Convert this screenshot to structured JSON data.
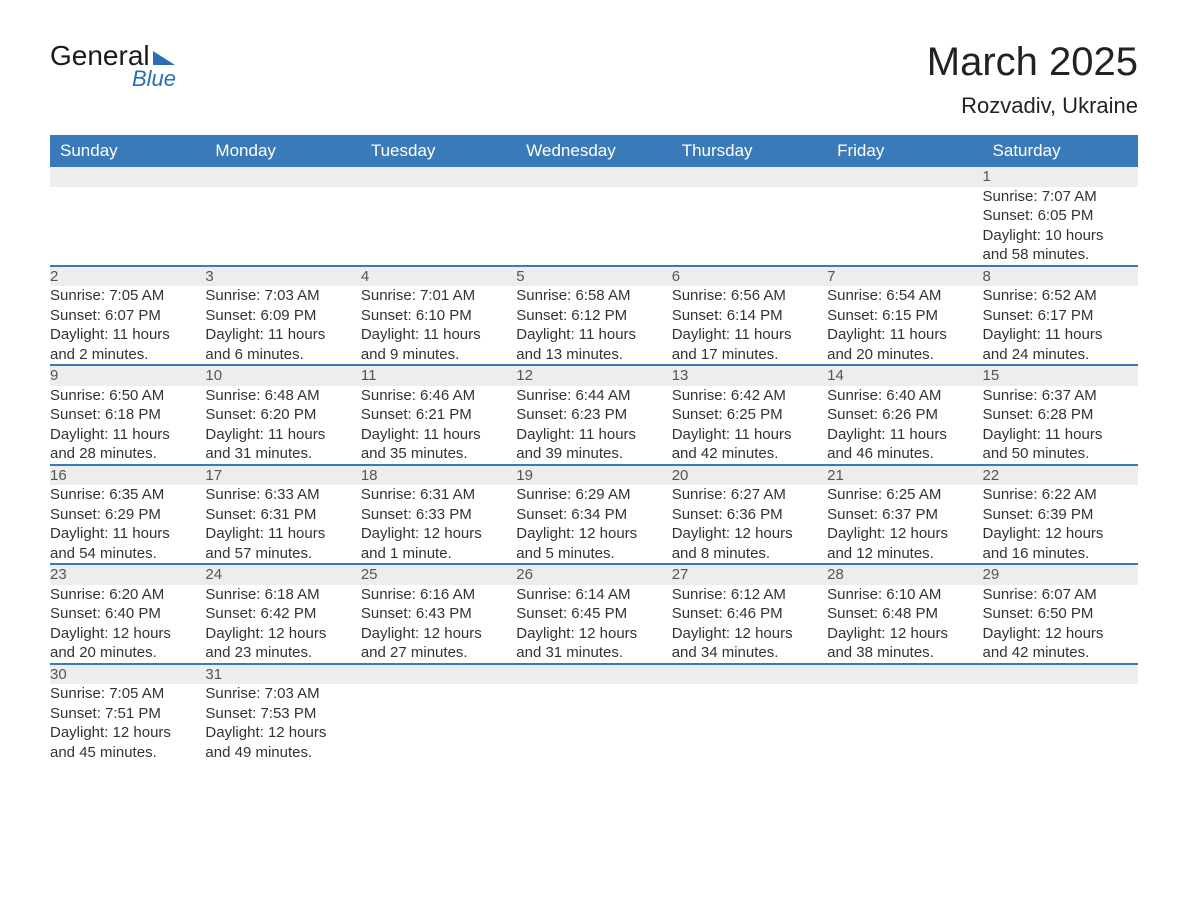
{
  "logo": {
    "word1": "General",
    "word2": "Blue"
  },
  "title": {
    "month": "March 2025",
    "location": "Rozvadiv, Ukraine"
  },
  "colors": {
    "header_bg": "#3b7ab8",
    "header_text": "#ffffff",
    "daynum_bg": "#ededed",
    "row_border": "#3b7ab8",
    "body_text": "#333333",
    "logo_accent": "#2a6db8"
  },
  "columns": [
    "Sunday",
    "Monday",
    "Tuesday",
    "Wednesday",
    "Thursday",
    "Friday",
    "Saturday"
  ],
  "weeks": [
    {
      "days": [
        null,
        null,
        null,
        null,
        null,
        null,
        {
          "n": "1",
          "sunrise": "Sunrise: 7:07 AM",
          "sunset": "Sunset: 6:05 PM",
          "day1": "Daylight: 10 hours",
          "day2": "and 58 minutes."
        }
      ]
    },
    {
      "days": [
        {
          "n": "2",
          "sunrise": "Sunrise: 7:05 AM",
          "sunset": "Sunset: 6:07 PM",
          "day1": "Daylight: 11 hours",
          "day2": "and 2 minutes."
        },
        {
          "n": "3",
          "sunrise": "Sunrise: 7:03 AM",
          "sunset": "Sunset: 6:09 PM",
          "day1": "Daylight: 11 hours",
          "day2": "and 6 minutes."
        },
        {
          "n": "4",
          "sunrise": "Sunrise: 7:01 AM",
          "sunset": "Sunset: 6:10 PM",
          "day1": "Daylight: 11 hours",
          "day2": "and 9 minutes."
        },
        {
          "n": "5",
          "sunrise": "Sunrise: 6:58 AM",
          "sunset": "Sunset: 6:12 PM",
          "day1": "Daylight: 11 hours",
          "day2": "and 13 minutes."
        },
        {
          "n": "6",
          "sunrise": "Sunrise: 6:56 AM",
          "sunset": "Sunset: 6:14 PM",
          "day1": "Daylight: 11 hours",
          "day2": "and 17 minutes."
        },
        {
          "n": "7",
          "sunrise": "Sunrise: 6:54 AM",
          "sunset": "Sunset: 6:15 PM",
          "day1": "Daylight: 11 hours",
          "day2": "and 20 minutes."
        },
        {
          "n": "8",
          "sunrise": "Sunrise: 6:52 AM",
          "sunset": "Sunset: 6:17 PM",
          "day1": "Daylight: 11 hours",
          "day2": "and 24 minutes."
        }
      ]
    },
    {
      "days": [
        {
          "n": "9",
          "sunrise": "Sunrise: 6:50 AM",
          "sunset": "Sunset: 6:18 PM",
          "day1": "Daylight: 11 hours",
          "day2": "and 28 minutes."
        },
        {
          "n": "10",
          "sunrise": "Sunrise: 6:48 AM",
          "sunset": "Sunset: 6:20 PM",
          "day1": "Daylight: 11 hours",
          "day2": "and 31 minutes."
        },
        {
          "n": "11",
          "sunrise": "Sunrise: 6:46 AM",
          "sunset": "Sunset: 6:21 PM",
          "day1": "Daylight: 11 hours",
          "day2": "and 35 minutes."
        },
        {
          "n": "12",
          "sunrise": "Sunrise: 6:44 AM",
          "sunset": "Sunset: 6:23 PM",
          "day1": "Daylight: 11 hours",
          "day2": "and 39 minutes."
        },
        {
          "n": "13",
          "sunrise": "Sunrise: 6:42 AM",
          "sunset": "Sunset: 6:25 PM",
          "day1": "Daylight: 11 hours",
          "day2": "and 42 minutes."
        },
        {
          "n": "14",
          "sunrise": "Sunrise: 6:40 AM",
          "sunset": "Sunset: 6:26 PM",
          "day1": "Daylight: 11 hours",
          "day2": "and 46 minutes."
        },
        {
          "n": "15",
          "sunrise": "Sunrise: 6:37 AM",
          "sunset": "Sunset: 6:28 PM",
          "day1": "Daylight: 11 hours",
          "day2": "and 50 minutes."
        }
      ]
    },
    {
      "days": [
        {
          "n": "16",
          "sunrise": "Sunrise: 6:35 AM",
          "sunset": "Sunset: 6:29 PM",
          "day1": "Daylight: 11 hours",
          "day2": "and 54 minutes."
        },
        {
          "n": "17",
          "sunrise": "Sunrise: 6:33 AM",
          "sunset": "Sunset: 6:31 PM",
          "day1": "Daylight: 11 hours",
          "day2": "and 57 minutes."
        },
        {
          "n": "18",
          "sunrise": "Sunrise: 6:31 AM",
          "sunset": "Sunset: 6:33 PM",
          "day1": "Daylight: 12 hours",
          "day2": "and 1 minute."
        },
        {
          "n": "19",
          "sunrise": "Sunrise: 6:29 AM",
          "sunset": "Sunset: 6:34 PM",
          "day1": "Daylight: 12 hours",
          "day2": "and 5 minutes."
        },
        {
          "n": "20",
          "sunrise": "Sunrise: 6:27 AM",
          "sunset": "Sunset: 6:36 PM",
          "day1": "Daylight: 12 hours",
          "day2": "and 8 minutes."
        },
        {
          "n": "21",
          "sunrise": "Sunrise: 6:25 AM",
          "sunset": "Sunset: 6:37 PM",
          "day1": "Daylight: 12 hours",
          "day2": "and 12 minutes."
        },
        {
          "n": "22",
          "sunrise": "Sunrise: 6:22 AM",
          "sunset": "Sunset: 6:39 PM",
          "day1": "Daylight: 12 hours",
          "day2": "and 16 minutes."
        }
      ]
    },
    {
      "days": [
        {
          "n": "23",
          "sunrise": "Sunrise: 6:20 AM",
          "sunset": "Sunset: 6:40 PM",
          "day1": "Daylight: 12 hours",
          "day2": "and 20 minutes."
        },
        {
          "n": "24",
          "sunrise": "Sunrise: 6:18 AM",
          "sunset": "Sunset: 6:42 PM",
          "day1": "Daylight: 12 hours",
          "day2": "and 23 minutes."
        },
        {
          "n": "25",
          "sunrise": "Sunrise: 6:16 AM",
          "sunset": "Sunset: 6:43 PM",
          "day1": "Daylight: 12 hours",
          "day2": "and 27 minutes."
        },
        {
          "n": "26",
          "sunrise": "Sunrise: 6:14 AM",
          "sunset": "Sunset: 6:45 PM",
          "day1": "Daylight: 12 hours",
          "day2": "and 31 minutes."
        },
        {
          "n": "27",
          "sunrise": "Sunrise: 6:12 AM",
          "sunset": "Sunset: 6:46 PM",
          "day1": "Daylight: 12 hours",
          "day2": "and 34 minutes."
        },
        {
          "n": "28",
          "sunrise": "Sunrise: 6:10 AM",
          "sunset": "Sunset: 6:48 PM",
          "day1": "Daylight: 12 hours",
          "day2": "and 38 minutes."
        },
        {
          "n": "29",
          "sunrise": "Sunrise: 6:07 AM",
          "sunset": "Sunset: 6:50 PM",
          "day1": "Daylight: 12 hours",
          "day2": "and 42 minutes."
        }
      ]
    },
    {
      "days": [
        {
          "n": "30",
          "sunrise": "Sunrise: 7:05 AM",
          "sunset": "Sunset: 7:51 PM",
          "day1": "Daylight: 12 hours",
          "day2": "and 45 minutes."
        },
        {
          "n": "31",
          "sunrise": "Sunrise: 7:03 AM",
          "sunset": "Sunset: 7:53 PM",
          "day1": "Daylight: 12 hours",
          "day2": "and 49 minutes."
        },
        null,
        null,
        null,
        null,
        null
      ]
    }
  ]
}
